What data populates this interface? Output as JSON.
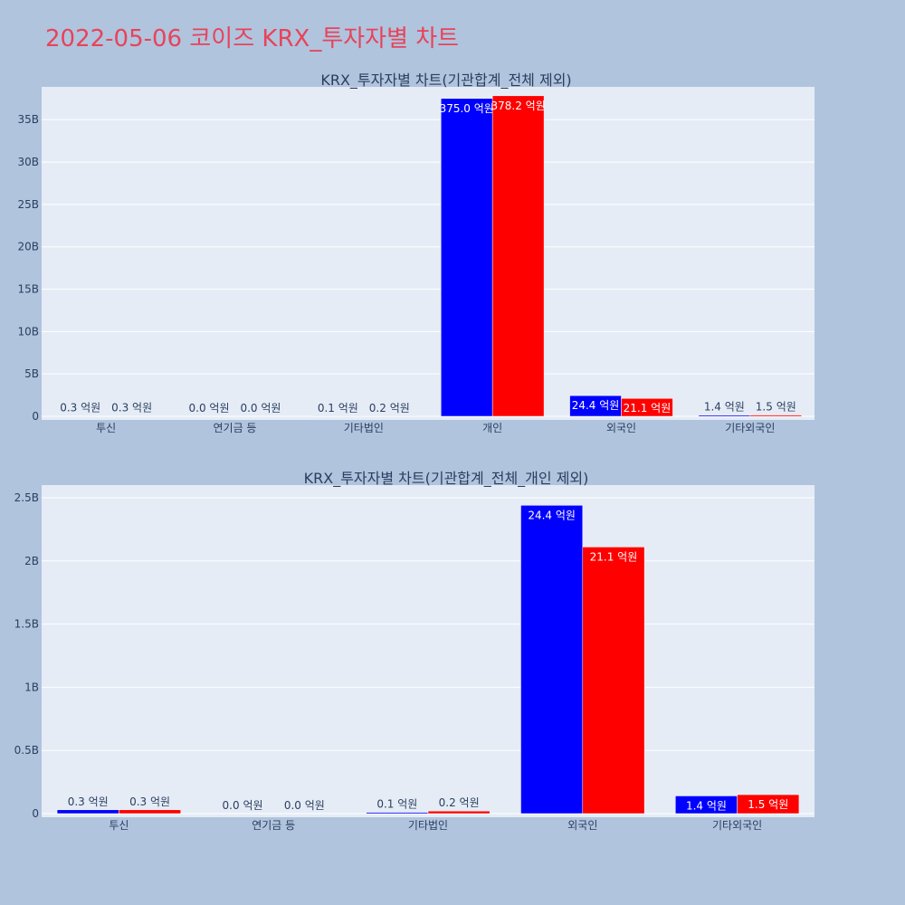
{
  "page": {
    "title": "2022-05-06 코이즈 KRX_투자자별 차트"
  },
  "colors": {
    "background": "#b0c4de",
    "plot_bg": "#e5ecf6",
    "title": "#e8435a",
    "series_a": "#0000ff",
    "series_b": "#ff0000"
  },
  "chart_data": [
    {
      "type": "bar",
      "title": "KRX_투자자별 차트(기관합계_전체 제외)",
      "categories": [
        "투신",
        "연기금 등",
        "기타법인",
        "개인",
        "외국인",
        "기타외국인"
      ],
      "series": [
        {
          "values": [
            30000000,
            0,
            10000000,
            37500000000,
            2440000000,
            140000000
          ],
          "labels": [
            "0.3 억원",
            "0.0 억원",
            "0.1 억원",
            "375.0 억원",
            "24.4 억원",
            "1.4 억원"
          ]
        },
        {
          "values": [
            30000000,
            0,
            20000000,
            37820000000,
            2110000000,
            150000000
          ],
          "labels": [
            "0.3 억원",
            "0.0 억원",
            "0.2 억원",
            "378.2 억원",
            "21.1 억원",
            "1.5 억원"
          ]
        }
      ],
      "ylim": [
        0,
        38870000000
      ],
      "yticks": [
        0,
        5000000000,
        10000000000,
        15000000000,
        20000000000,
        25000000000,
        30000000000,
        35000000000
      ],
      "ytick_labels": [
        "0",
        "5B",
        "10B",
        "15B",
        "20B",
        "25B",
        "30B",
        "35B"
      ],
      "grid": true
    },
    {
      "type": "bar",
      "title": "KRX_투자자별 차트(기관합계_전체_개인 제외)",
      "categories": [
        "투신",
        "연기금 등",
        "기타법인",
        "외국인",
        "기타외국인"
      ],
      "series": [
        {
          "values": [
            30000000,
            0,
            10000000,
            2440000000,
            140000000
          ],
          "labels": [
            "0.3 억원",
            "0.0 억원",
            "0.1 억원",
            "24.4 억원",
            "1.4 억원"
          ]
        },
        {
          "values": [
            30000000,
            0,
            20000000,
            2110000000,
            150000000
          ],
          "labels": [
            "0.3 억원",
            "0.0 억원",
            "0.2 억원",
            "21.1 억원",
            "1.5 억원"
          ]
        }
      ],
      "ylim": [
        0,
        2600000000
      ],
      "yticks": [
        0,
        500000000,
        1000000000,
        1500000000,
        2000000000,
        2500000000
      ],
      "ytick_labels": [
        "0",
        "0.5B",
        "1B",
        "1.5B",
        "2B",
        "2.5B"
      ],
      "grid": true
    }
  ]
}
